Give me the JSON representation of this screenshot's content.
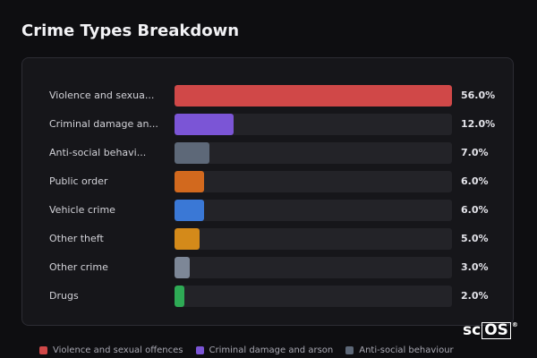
{
  "page_title": "Crime Types Breakdown",
  "chart_data": {
    "type": "bar",
    "orientation": "horizontal",
    "title": "Crime Types Breakdown",
    "categories": [
      "Violence and sexua...",
      "Criminal damage an...",
      "Anti-social behavi...",
      "Public order",
      "Vehicle crime",
      "Other theft",
      "Other crime",
      "Drugs"
    ],
    "values": [
      56.0,
      12.0,
      7.0,
      6.0,
      6.0,
      5.0,
      3.0,
      2.0
    ],
    "value_labels": [
      "56.0%",
      "12.0%",
      "7.0%",
      "6.0%",
      "6.0%",
      "5.0%",
      "3.0%",
      "2.0%"
    ],
    "colors": [
      "#d04848",
      "#7b55d6",
      "#5d6878",
      "#d2691e",
      "#3a78d6",
      "#d48a1a",
      "#7d8797",
      "#2eaa55"
    ],
    "xlim": [
      0,
      56.0
    ],
    "legend": {
      "placement": "bottom",
      "entries": [
        {
          "label": "Violence and sexual offences",
          "color": "#d04848"
        },
        {
          "label": "Criminal damage and arson",
          "color": "#7b55d6"
        },
        {
          "label": "Anti-social behaviour",
          "color": "#5d6878"
        }
      ]
    }
  },
  "logo_text": "scOS"
}
